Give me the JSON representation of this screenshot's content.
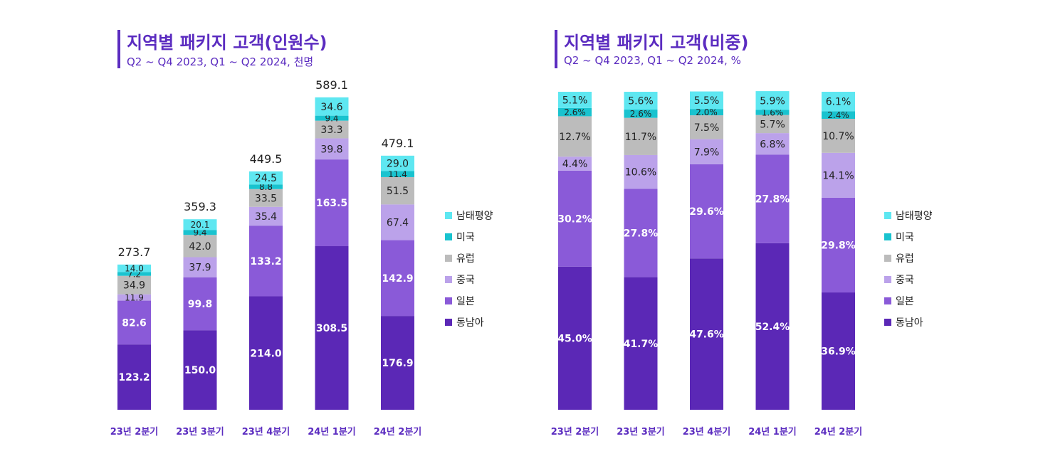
{
  "colors": {
    "동남아": "#5b28b6",
    "일본": "#8a5ad8",
    "중국": "#bba2ea",
    "유럽": "#bcbcbc",
    "미국": "#19c3cf",
    "남태평양": "#5ee7f1",
    "axis": "#5b2cc0"
  },
  "legend": [
    "남태평양",
    "미국",
    "유럽",
    "중국",
    "일본",
    "동남아"
  ],
  "chart_data": [
    {
      "type": "bar",
      "stacked": true,
      "title": "지역별 패키지 고객(인원수)",
      "subtitle": "Q2 ~ Q4 2023, Q1 ~ Q2 2024, 천명",
      "categories": [
        "23년 2분기",
        "23년 3분기",
        "23년 4분기",
        "24년 1분기",
        "24년 2분기"
      ],
      "totals": [
        "273.7",
        "359.3",
        "449.5",
        "589.1",
        "479.1"
      ],
      "series": [
        {
          "name": "동남아",
          "values": [
            123.2,
            150.0,
            214.0,
            308.5,
            176.9
          ],
          "labels": [
            "123.2",
            "150.0",
            "214.0",
            "308.5",
            "176.9"
          ]
        },
        {
          "name": "일본",
          "values": [
            82.6,
            99.8,
            133.2,
            163.5,
            142.9
          ],
          "labels": [
            "82.6",
            "99.8",
            "133.2",
            "163.5",
            "142.9"
          ]
        },
        {
          "name": "중국",
          "values": [
            11.9,
            37.9,
            35.4,
            39.8,
            67.4
          ],
          "labels": [
            "11.9",
            "37.9",
            "35.4",
            "39.8",
            "67.4"
          ]
        },
        {
          "name": "유럽",
          "values": [
            34.9,
            42.0,
            33.5,
            33.3,
            51.5
          ],
          "labels": [
            "34.9",
            "42.0",
            "33.5",
            "33.3",
            "51.5"
          ]
        },
        {
          "name": "미국",
          "values": [
            7.2,
            9.4,
            8.8,
            9.4,
            11.4
          ],
          "labels": [
            "7.2",
            "9.4",
            "8.8",
            "9.4",
            "11.4"
          ]
        },
        {
          "name": "남태평양",
          "values": [
            14.0,
            20.1,
            24.5,
            34.6,
            29.0
          ],
          "labels": [
            "14.0",
            "20.1",
            "24.5",
            "34.6",
            "29.0"
          ]
        }
      ]
    },
    {
      "type": "bar",
      "stacked": true,
      "title": "지역별 패키지 고객(비중)",
      "subtitle": "Q2 ~ Q4 2023, Q1 ~ Q2 2024, %",
      "categories": [
        "23년 2분기",
        "23년 3분기",
        "23년 4분기",
        "24년 1분기",
        "24년 2분기"
      ],
      "series": [
        {
          "name": "동남아",
          "values": [
            45.0,
            41.7,
            47.6,
            52.4,
            36.9
          ],
          "labels": [
            "45.0%",
            "41.7%",
            "47.6%",
            "52.4%",
            "36.9%"
          ]
        },
        {
          "name": "일본",
          "values": [
            30.2,
            27.8,
            29.6,
            27.8,
            29.8
          ],
          "labels": [
            "30.2%",
            "27.8%",
            "29.6%",
            "27.8%",
            "29.8%"
          ]
        },
        {
          "name": "중국",
          "values": [
            4.4,
            10.6,
            7.9,
            6.8,
            14.1
          ],
          "labels": [
            "4.4%",
            "10.6%",
            "7.9%",
            "6.8%",
            "14.1%"
          ]
        },
        {
          "name": "유럽",
          "values": [
            12.7,
            11.7,
            7.5,
            5.7,
            10.7
          ],
          "labels": [
            "12.7%",
            "11.7%",
            "7.5%",
            "5.7%",
            "10.7%"
          ]
        },
        {
          "name": "미국",
          "values": [
            2.6,
            2.6,
            2.0,
            1.6,
            2.4
          ],
          "labels": [
            "2.6%",
            "2.6%",
            "2.0%",
            "1.6%",
            "2.4%"
          ]
        },
        {
          "name": "남태평양",
          "values": [
            5.1,
            5.6,
            5.5,
            5.9,
            6.1
          ],
          "labels": [
            "5.1%",
            "5.6%",
            "5.5%",
            "5.9%",
            "6.1%"
          ]
        }
      ]
    }
  ]
}
